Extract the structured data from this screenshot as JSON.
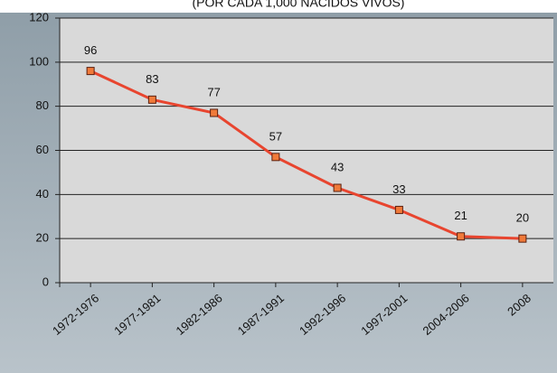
{
  "chart_data": {
    "type": "line",
    "title": "(POR CADA 1,000 NACIDOS VIVOS)",
    "categories": [
      "1972-1976",
      "1977-1981",
      "1982-1986",
      "1987-1991",
      "1992-1996",
      "1997-2001",
      "2004-2006",
      "2008"
    ],
    "values": [
      96,
      83,
      77,
      57,
      43,
      33,
      21,
      20
    ],
    "color": "#e8452f",
    "marker_color": "#f07a3a",
    "ylim": [
      0,
      120
    ],
    "yticks": [
      0,
      20,
      40,
      60,
      80,
      100,
      120
    ],
    "grid": true
  }
}
